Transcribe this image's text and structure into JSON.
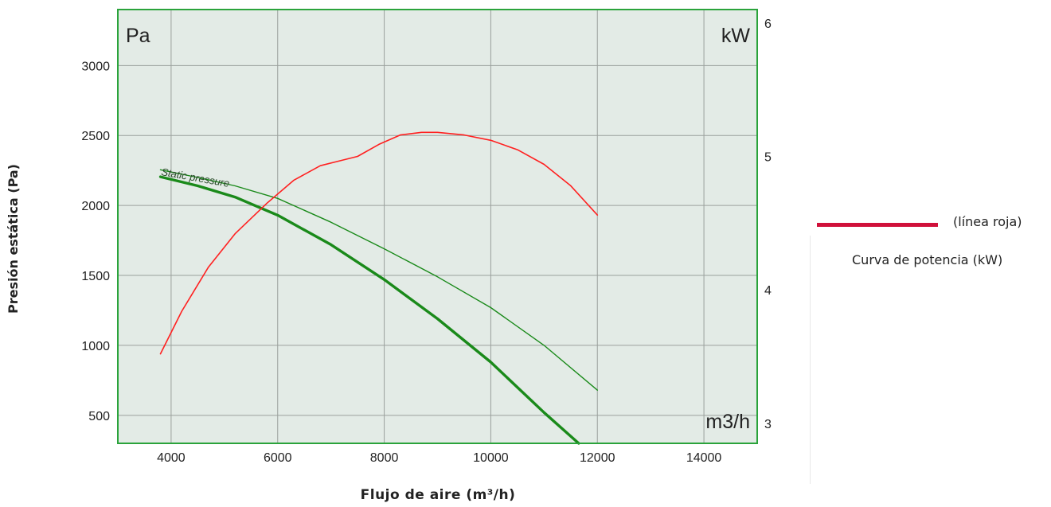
{
  "chart_data": {
    "type": "line",
    "inner_labels": {
      "top_left": "Pa",
      "top_right": "kW",
      "bottom_right": "m3/h"
    },
    "xlabel": "Flujo de aire (m³/h)",
    "ylabel": "Presión estática (Pa)",
    "xlim": [
      3000,
      15000
    ],
    "ylim": [
      300,
      3400
    ],
    "y2lim": [
      2.85,
      6.1
    ],
    "x_ticks": [
      4000,
      6000,
      8000,
      10000,
      12000,
      14000
    ],
    "y_ticks": [
      500,
      1000,
      1500,
      2000,
      2500,
      3000
    ],
    "y2_ticks": [
      3,
      4,
      5,
      6
    ],
    "grid": true,
    "plot_background": "#e3ebe6",
    "frame_color": "#2aa33b",
    "series": [
      {
        "label": "Static pressure",
        "axis": "left",
        "color": "#1a8a1a",
        "width": 1.4,
        "x": [
          3800,
          4500,
          5200,
          6000,
          7000,
          8000,
          9000,
          10000,
          11000,
          12000
        ],
        "y": [
          2255,
          2200,
          2140,
          2050,
          1880,
          1690,
          1490,
          1270,
          1000,
          680
        ]
      },
      {
        "axis": "left",
        "color": "#1a8a1a",
        "width": 3.4,
        "x": [
          3800,
          4500,
          5200,
          6000,
          7000,
          8000,
          9000,
          10000,
          11000,
          11650
        ],
        "y": [
          2205,
          2140,
          2060,
          1930,
          1720,
          1470,
          1190,
          880,
          520,
          280
        ]
      },
      {
        "axis": "right",
        "color": "#ff2020",
        "width": 1.6,
        "x": [
          3800,
          4200,
          4700,
          5200,
          5800,
          6300,
          6800,
          7200,
          7500,
          7900,
          8300,
          8700,
          9000,
          9500,
          10000,
          10500,
          11000,
          11500,
          12000
        ],
        "y": [
          3.52,
          3.84,
          4.17,
          4.42,
          4.65,
          4.82,
          4.93,
          4.97,
          5.0,
          5.09,
          5.16,
          5.18,
          5.18,
          5.16,
          5.12,
          5.05,
          4.94,
          4.78,
          4.56
        ]
      }
    ],
    "legend": {
      "entry": "(línea roja)",
      "title": "Curva de potencia (kW)",
      "color": "#d0103a"
    }
  }
}
